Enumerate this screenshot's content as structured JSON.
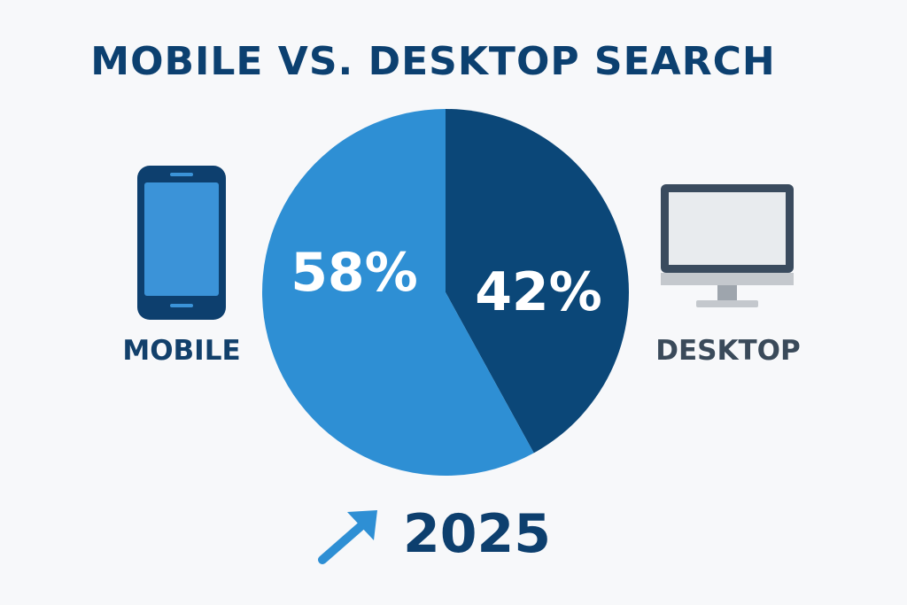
{
  "title": "MOBILE VS. DESKTOP SEARCH",
  "labels": {
    "mobile": "MOBILE",
    "desktop": "DESKTOP"
  },
  "year": "2025",
  "icons": {
    "mobile": "smartphone-icon",
    "desktop": "desktop-monitor-icon",
    "trend": "up-right-arrow-icon"
  },
  "colors": {
    "mobile": "#2e8fd4",
    "desktop": "#0b4778",
    "title": "#0c4070",
    "background": "#f7f8fa"
  },
  "chart_data": {
    "type": "pie",
    "title": "MOBILE VS. DESKTOP SEARCH",
    "categories": [
      "Mobile",
      "Desktop"
    ],
    "values": [
      58,
      42
    ],
    "value_labels": [
      "58%",
      "42%"
    ],
    "colors": [
      "#2e8fd4",
      "#0b4778"
    ]
  }
}
